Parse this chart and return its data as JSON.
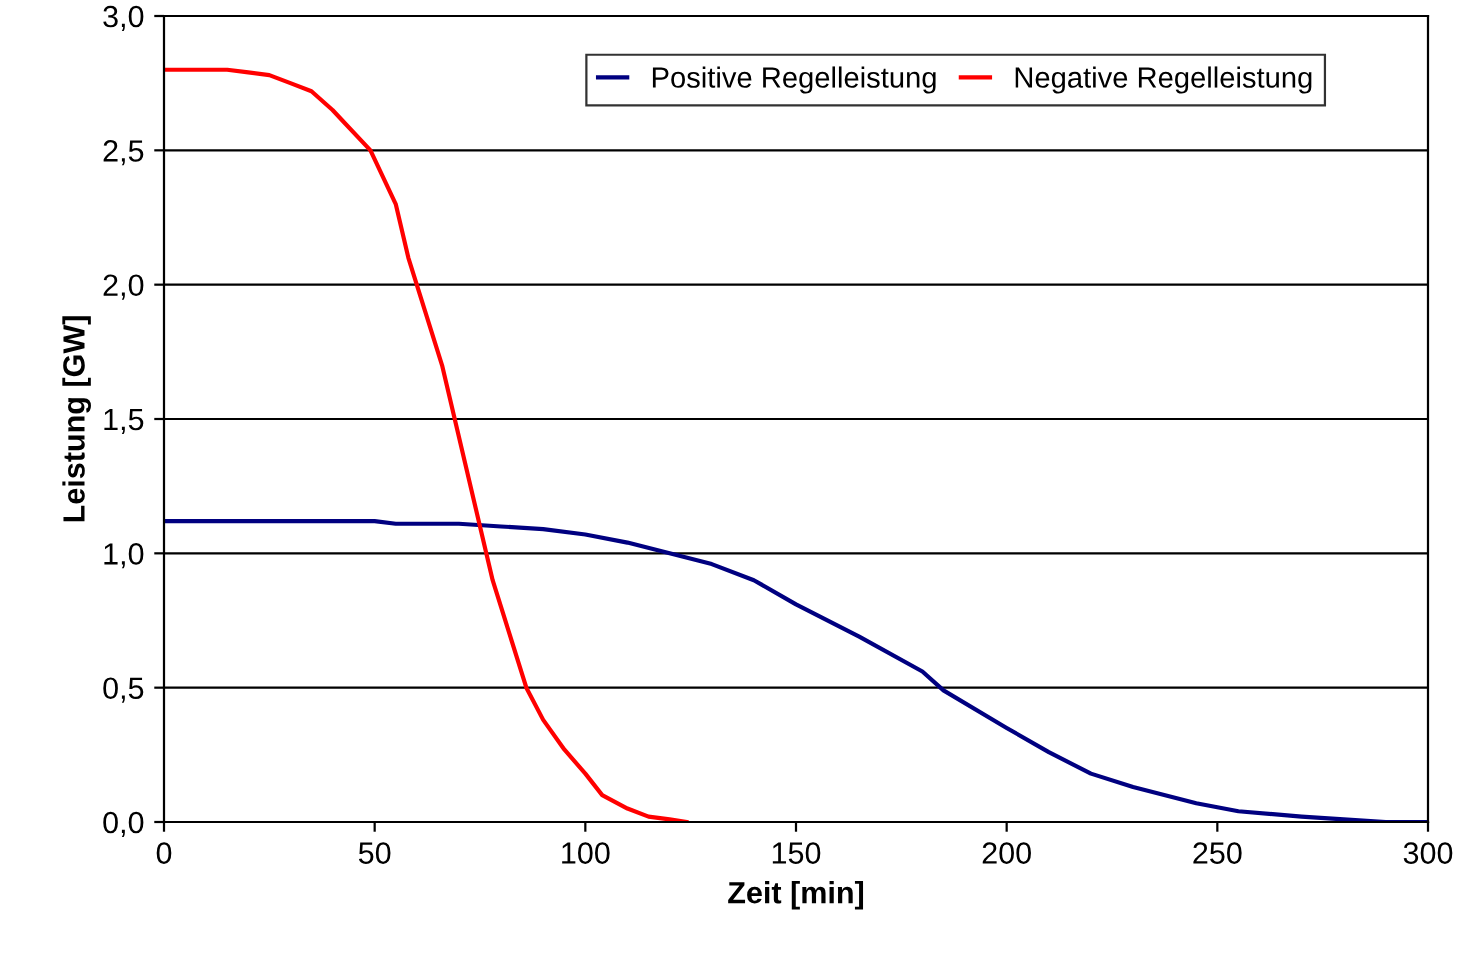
{
  "chart_data": {
    "type": "line",
    "xlabel": "Zeit [min]",
    "ylabel": "Leistung [GW]",
    "xlim": [
      0,
      300
    ],
    "xticks": [
      0,
      50,
      100,
      150,
      200,
      250,
      300
    ],
    "ylim": [
      0,
      3
    ],
    "yticks": [
      {
        "value": 0,
        "label": "0,0"
      },
      {
        "value": 0.5,
        "label": "0,5"
      },
      {
        "value": 1,
        "label": "1,0"
      },
      {
        "value": 1.5,
        "label": "1,5"
      },
      {
        "value": 2,
        "label": "2,0"
      },
      {
        "value": 2.5,
        "label": "2,5"
      },
      {
        "value": 3,
        "label": "3,0"
      }
    ],
    "grid": "y",
    "legend": "top right",
    "marker": "none",
    "line_style": "solid",
    "series": [
      {
        "name": "Positive Regelleistung",
        "color": "#000080",
        "x": [
          0,
          25,
          50,
          55,
          70,
          80,
          90,
          100,
          110,
          120,
          130,
          140,
          150,
          165,
          180,
          185,
          200,
          210,
          220,
          230,
          245,
          255,
          270,
          280,
          290,
          300
        ],
        "values": [
          1.12,
          1.12,
          1.12,
          1.11,
          1.11,
          1.1,
          1.09,
          1.07,
          1.04,
          1.0,
          0.96,
          0.9,
          0.81,
          0.69,
          0.56,
          0.49,
          0.35,
          0.26,
          0.18,
          0.13,
          0.07,
          0.04,
          0.02,
          0.01,
          0.0,
          0.0
        ]
      },
      {
        "name": "Negative Regelleistung",
        "color": "#ff0000",
        "x": [
          0,
          15,
          20,
          25,
          30,
          35,
          40,
          43,
          49,
          55,
          58,
          62,
          66,
          69,
          72,
          75,
          78,
          82,
          86,
          90,
          95,
          100,
          104,
          110,
          115,
          120,
          124
        ],
        "values": [
          2.8,
          2.8,
          2.79,
          2.78,
          2.75,
          2.72,
          2.65,
          2.6,
          2.5,
          2.3,
          2.1,
          1.9,
          1.7,
          1.5,
          1.3,
          1.1,
          0.9,
          0.7,
          0.5,
          0.38,
          0.27,
          0.18,
          0.1,
          0.05,
          0.02,
          0.01,
          0.0
        ]
      }
    ]
  }
}
